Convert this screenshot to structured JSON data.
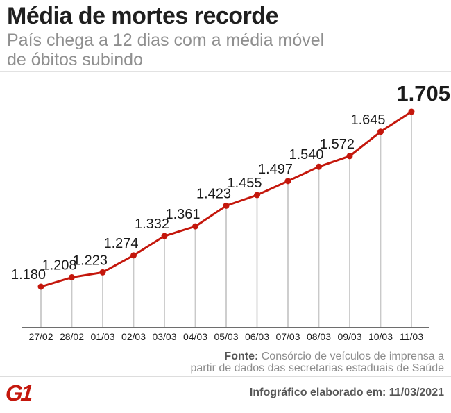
{
  "header": {
    "title": "Média de mortes recorde",
    "subtitle_line1": "País chega a 12 dias com a média móvel",
    "subtitle_line2": "de óbitos subindo"
  },
  "chart_data": {
    "type": "line",
    "title": "Média de mortes recorde",
    "subtitle": "País chega a 12 dias com a média móvel de óbitos subindo",
    "categories": [
      "27/02",
      "28/02",
      "01/03",
      "02/03",
      "03/03",
      "04/03",
      "05/03",
      "06/03",
      "07/03",
      "08/03",
      "09/03",
      "10/03",
      "11/03"
    ],
    "values": [
      1180,
      1208,
      1223,
      1274,
      1332,
      1361,
      1423,
      1455,
      1497,
      1540,
      1572,
      1645,
      1705
    ],
    "point_labels": [
      "1.180",
      "1.208",
      "1.223",
      "1.274",
      "1.332",
      "1.361",
      "1.423",
      "1.455",
      "1.497",
      "1.540",
      "1.572",
      "1.645",
      "1.705"
    ],
    "series_name": "média móvel de óbitos",
    "ylim": [
      1180,
      1705
    ],
    "xlabel": "",
    "ylabel": "",
    "legend": "none",
    "grid": "vertical-droplines",
    "highlight_last": true,
    "line_color": "#c4170c",
    "dropline_color": "#c9c9c9",
    "axis_color": "#6e6e6e",
    "label_color": "#1a1a1a",
    "tick_color": "#1c1c1c"
  },
  "source": {
    "label": "Fonte:",
    "line1": "Consórcio de veículos de imprensa a",
    "line2": "partir de dados das secretarias estaduais de Saúde"
  },
  "footer": {
    "logo": "G1",
    "note": "Infográfico elaborado em: 11/03/2021"
  },
  "colors": {
    "accent_red": "#c4170c",
    "title_text": "#1f1f1f",
    "subtitle_text": "#8f8f8f",
    "divider": "#e2e2e2"
  }
}
